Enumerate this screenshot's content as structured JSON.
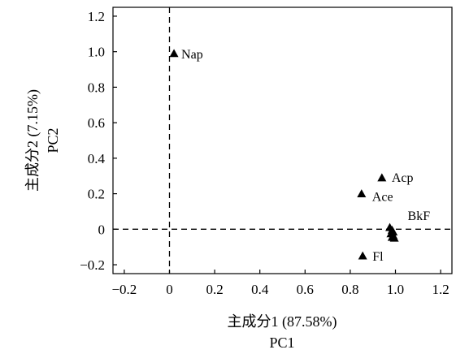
{
  "chart_data": {
    "type": "scatter",
    "xlabel": "主成分1 (87.58%)",
    "xlabel2": "PC1",
    "ylabel": "主成分2 (7.15%)",
    "ylabel2": "PC2",
    "xlim": [
      -0.25,
      1.25
    ],
    "ylim": [
      -0.25,
      1.25
    ],
    "x_ticks": [
      -0.2,
      0,
      0.2,
      0.4,
      0.6,
      0.8,
      1.0,
      1.2
    ],
    "x_tick_labels": [
      "−0.2",
      "0",
      "0.2",
      "0.4",
      "0.6",
      "0.8",
      "1.0",
      "1.2"
    ],
    "y_ticks": [
      -0.2,
      0,
      0.2,
      0.4,
      0.6,
      0.8,
      1.0,
      1.2
    ],
    "y_tick_labels": [
      "−0.2",
      "0",
      "0.2",
      "0.4",
      "0.6",
      "0.8",
      "1.0",
      "1.2"
    ],
    "reference_lines": {
      "x": 0,
      "y": 0
    },
    "grid": false,
    "marker": "triangle",
    "points": [
      {
        "x": 0.02,
        "y": 0.99,
        "label": "Nap"
      },
      {
        "x": 0.94,
        "y": 0.29,
        "label": "Acp"
      },
      {
        "x": 0.85,
        "y": 0.2,
        "label": "Ace"
      },
      {
        "x": 0.975,
        "y": 0.01,
        "label": "BkF"
      },
      {
        "x": 0.855,
        "y": -0.15,
        "label": "Fl"
      },
      {
        "x": 0.985,
        "y": -0.005,
        "label": ""
      },
      {
        "x": 0.99,
        "y": -0.015,
        "label": ""
      },
      {
        "x": 0.98,
        "y": -0.025,
        "label": ""
      },
      {
        "x": 0.99,
        "y": -0.035,
        "label": ""
      },
      {
        "x": 0.985,
        "y": -0.045,
        "label": ""
      },
      {
        "x": 0.995,
        "y": -0.05,
        "label": ""
      }
    ]
  }
}
